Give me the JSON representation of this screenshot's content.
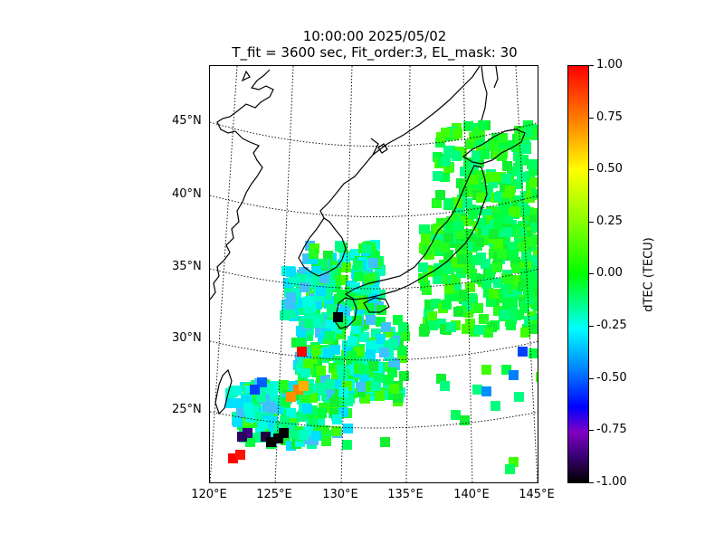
{
  "title": {
    "line1": "10:00:00 2025/05/02",
    "line2": "T_fit = 3600 sec, Fit_order:3, EL_mask: 30"
  },
  "map": {
    "lat_labels": [
      "45°N",
      "40°N",
      "35°N",
      "30°N",
      "25°N"
    ],
    "lon_labels": [
      "120°E",
      "125°E",
      "130°E",
      "135°E",
      "140°E",
      "145°E"
    ],
    "extent": {
      "lon_min": 120,
      "lon_max": 145,
      "lat_min": 20,
      "lat_max": 49
    }
  },
  "colorbar": {
    "label": "dTEC (TECU)",
    "ticks": [
      "1.00",
      "0.75",
      "0.50",
      "0.25",
      "0.00",
      "-0.25",
      "-0.50",
      "-0.75",
      "-1.00"
    ],
    "range": [
      -1.0,
      1.0
    ],
    "colors": [
      "#000000",
      "#400080",
      "#0000ff",
      "#0080ff",
      "#00ffff",
      "#00ff00",
      "#80ff00",
      "#ffff00",
      "#ff8000",
      "#ff0000"
    ]
  }
}
